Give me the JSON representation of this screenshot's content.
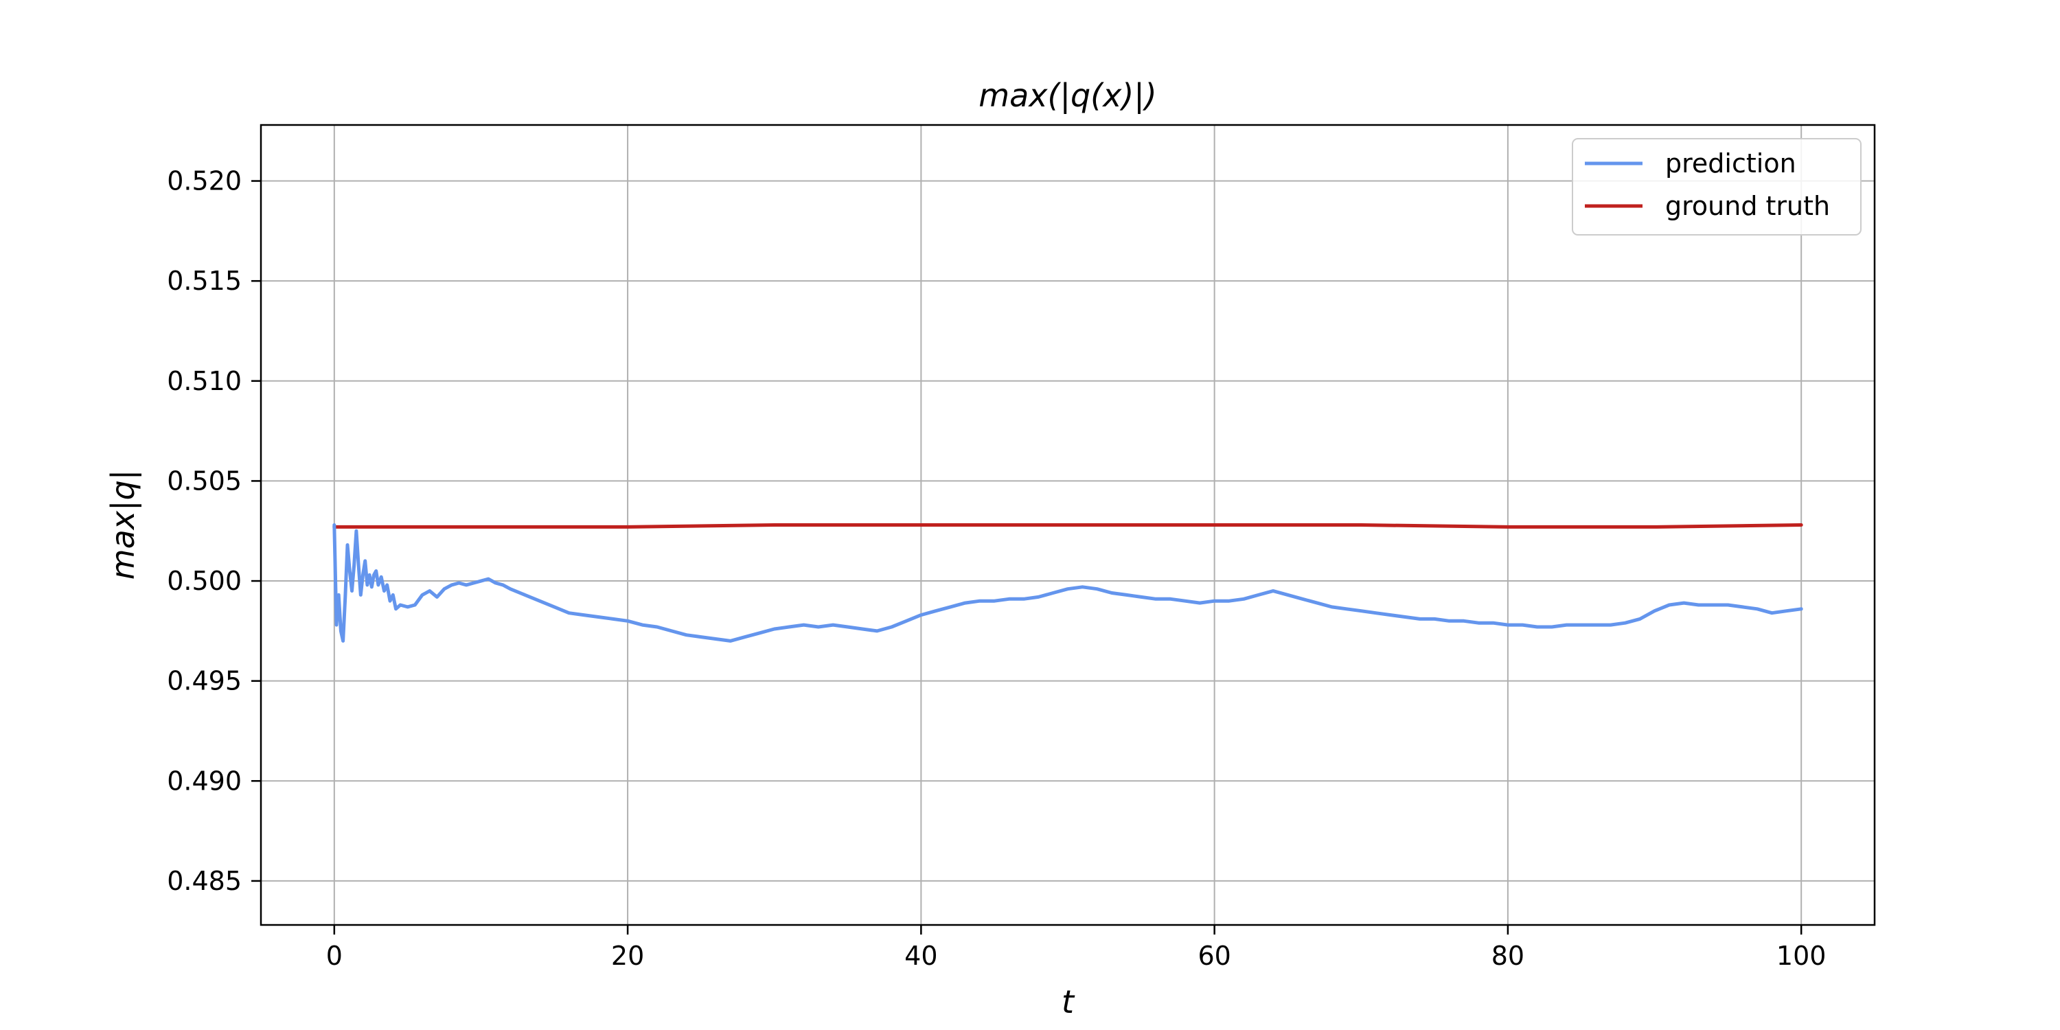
{
  "chart_data": {
    "type": "line",
    "title": "max(|q(x)|)",
    "xlabel": "t",
    "ylabel": "max|q|",
    "xlim": [
      -5,
      105
    ],
    "ylim": [
      0.4828,
      0.5228
    ],
    "x_ticks": [
      0,
      20,
      40,
      60,
      80,
      100
    ],
    "x_tick_labels": [
      "0",
      "20",
      "40",
      "60",
      "80",
      "100"
    ],
    "y_ticks": [
      0.485,
      0.49,
      0.495,
      0.5,
      0.505,
      0.51,
      0.515,
      0.52
    ],
    "y_tick_labels": [
      "0.485",
      "0.490",
      "0.495",
      "0.500",
      "0.505",
      "0.510",
      "0.515",
      "0.520"
    ],
    "grid": true,
    "legend_position": "top-right",
    "series": [
      {
        "name": "prediction",
        "color": "#6495ed",
        "x": [
          0,
          0.15,
          0.3,
          0.45,
          0.6,
          0.75,
          0.9,
          1.05,
          1.2,
          1.35,
          1.5,
          1.65,
          1.8,
          1.95,
          2.1,
          2.25,
          2.4,
          2.55,
          2.7,
          2.85,
          3.0,
          3.2,
          3.4,
          3.6,
          3.8,
          4.0,
          4.2,
          4.5,
          5.0,
          5.5,
          6.0,
          6.5,
          7.0,
          7.5,
          8.0,
          8.5,
          9.0,
          9.5,
          10.0,
          10.5,
          11.0,
          11.5,
          12.0,
          13.0,
          14.0,
          15.0,
          16.0,
          17.0,
          18.0,
          19.0,
          20.0,
          21.0,
          22.0,
          23.0,
          24.0,
          25.0,
          26.0,
          27.0,
          28.0,
          29.0,
          30.0,
          31.0,
          32.0,
          33.0,
          34.0,
          35.0,
          36.0,
          37.0,
          38.0,
          39.0,
          40.0,
          41.0,
          42.0,
          43.0,
          44.0,
          45.0,
          46.0,
          47.0,
          48.0,
          49.0,
          50.0,
          51.0,
          52.0,
          53.0,
          54.0,
          55.0,
          56.0,
          57.0,
          58.0,
          59.0,
          60.0,
          61.0,
          62.0,
          63.0,
          64.0,
          65.0,
          66.0,
          67.0,
          68.0,
          69.0,
          70.0,
          71.0,
          72.0,
          73.0,
          74.0,
          75.0,
          76.0,
          77.0,
          78.0,
          79.0,
          80.0,
          81.0,
          82.0,
          83.0,
          84.0,
          85.0,
          86.0,
          87.0,
          88.0,
          89.0,
          90.0,
          91.0,
          92.0,
          93.0,
          94.0,
          95.0,
          96.0,
          97.0,
          98.0,
          99.0,
          100.0
        ],
        "y": [
          0.5028,
          0.4978,
          0.4993,
          0.4975,
          0.497,
          0.4992,
          0.5018,
          0.5005,
          0.4995,
          0.5008,
          0.5025,
          0.5008,
          0.4993,
          0.5003,
          0.501,
          0.4998,
          0.5003,
          0.4997,
          0.5003,
          0.5005,
          0.4998,
          0.5002,
          0.4995,
          0.4998,
          0.499,
          0.4993,
          0.4986,
          0.4988,
          0.4987,
          0.4988,
          0.4993,
          0.4995,
          0.4992,
          0.4996,
          0.4998,
          0.4999,
          0.4998,
          0.4999,
          0.5,
          0.5001,
          0.4999,
          0.4998,
          0.4996,
          0.4993,
          0.499,
          0.4987,
          0.4984,
          0.4983,
          0.4982,
          0.4981,
          0.498,
          0.4978,
          0.4977,
          0.4975,
          0.4973,
          0.4972,
          0.4971,
          0.497,
          0.4972,
          0.4974,
          0.4976,
          0.4977,
          0.4978,
          0.4977,
          0.4978,
          0.4977,
          0.4976,
          0.4975,
          0.4977,
          0.498,
          0.4983,
          0.4985,
          0.4987,
          0.4989,
          0.499,
          0.499,
          0.4991,
          0.4991,
          0.4992,
          0.4994,
          0.4996,
          0.4997,
          0.4996,
          0.4994,
          0.4993,
          0.4992,
          0.4991,
          0.4991,
          0.499,
          0.4989,
          0.499,
          0.499,
          0.4991,
          0.4993,
          0.4995,
          0.4993,
          0.4991,
          0.4989,
          0.4987,
          0.4986,
          0.4985,
          0.4984,
          0.4983,
          0.4982,
          0.4981,
          0.4981,
          0.498,
          0.498,
          0.4979,
          0.4979,
          0.4978,
          0.4978,
          0.4977,
          0.4977,
          0.4978,
          0.4978,
          0.4978,
          0.4978,
          0.4979,
          0.4981,
          0.4985,
          0.4988,
          0.4989,
          0.4988,
          0.4988,
          0.4988,
          0.4987,
          0.4986,
          0.4984,
          0.4985,
          0.4986
        ]
      },
      {
        "name": "ground truth",
        "color": "#c0211e",
        "x": [
          0,
          10,
          20,
          30,
          40,
          50,
          60,
          70,
          80,
          90,
          100
        ],
        "y": [
          0.5027,
          0.5027,
          0.5027,
          0.5028,
          0.5028,
          0.5028,
          0.5028,
          0.5028,
          0.5027,
          0.5027,
          0.5028
        ]
      }
    ]
  }
}
